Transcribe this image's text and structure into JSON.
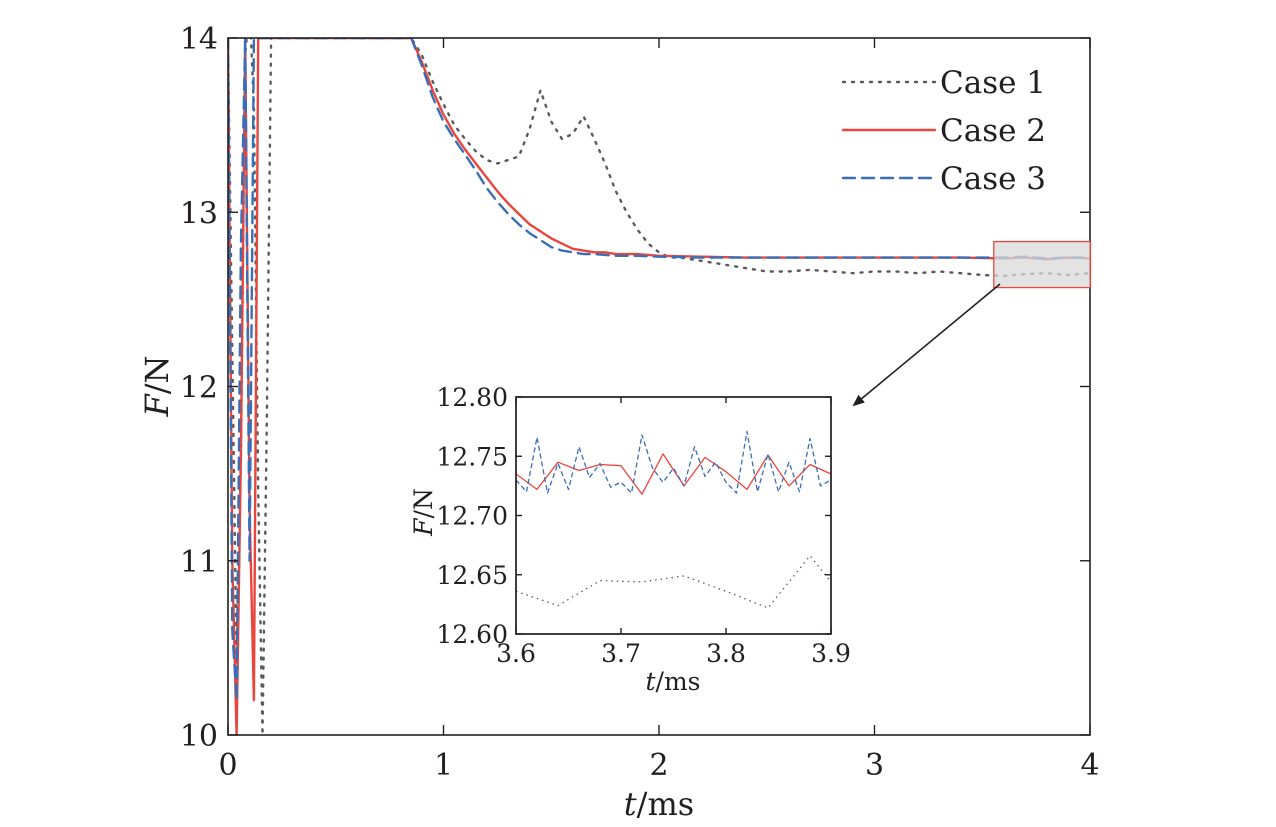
{
  "chart_data": [
    {
      "type": "line",
      "xlabel": {
        "italic": "t",
        "rest": "/ms"
      },
      "ylabel": {
        "italic": "F",
        "rest": "/N"
      },
      "xlim": [
        0,
        4
      ],
      "ylim": [
        10,
        14
      ],
      "xticks": [
        0,
        1,
        2,
        3,
        4
      ],
      "yticks": [
        10,
        11,
        12,
        13,
        14
      ],
      "grid": false,
      "legend_position": "top-right",
      "series": [
        {
          "name": "Case 1",
          "color": "#5a5a5a",
          "dash": "2,7",
          "x": [
            0.0,
            0.02,
            0.04,
            0.06,
            0.08,
            0.1,
            0.12,
            0.14,
            0.16,
            0.18,
            0.2,
            0.85,
            0.9,
            0.95,
            1.0,
            1.05,
            1.1,
            1.15,
            1.2,
            1.25,
            1.3,
            1.35,
            1.4,
            1.45,
            1.5,
            1.55,
            1.6,
            1.65,
            1.7,
            1.75,
            1.8,
            1.85,
            1.9,
            1.95,
            2.0,
            2.05,
            2.1,
            2.2,
            2.3,
            2.4,
            2.5,
            2.6,
            2.7,
            2.8,
            2.9,
            3.0,
            3.1,
            3.2,
            3.3,
            3.4,
            3.5,
            3.6,
            3.7,
            3.8,
            3.9,
            4.0
          ],
          "y": [
            14.0,
            12.2,
            10.4,
            11.6,
            13.9,
            14.2,
            13.6,
            11.4,
            10.0,
            11.8,
            14.0,
            14.0,
            13.9,
            13.75,
            13.62,
            13.5,
            13.42,
            13.35,
            13.3,
            13.28,
            13.3,
            13.32,
            13.48,
            13.7,
            13.52,
            13.42,
            13.45,
            13.55,
            13.42,
            13.28,
            13.12,
            13.0,
            12.9,
            12.82,
            12.77,
            12.74,
            12.74,
            12.72,
            12.7,
            12.68,
            12.66,
            12.66,
            12.67,
            12.66,
            12.65,
            12.66,
            12.66,
            12.65,
            12.66,
            12.65,
            12.64,
            12.635,
            12.645,
            12.65,
            12.64,
            12.65
          ]
        },
        {
          "name": "Case 2",
          "color": "#e8463d",
          "dash": "",
          "x": [
            0.0,
            0.02,
            0.04,
            0.06,
            0.08,
            0.1,
            0.12,
            0.14,
            0.85,
            0.9,
            0.95,
            1.0,
            1.05,
            1.1,
            1.15,
            1.2,
            1.25,
            1.3,
            1.35,
            1.4,
            1.45,
            1.5,
            1.55,
            1.6,
            1.65,
            1.7,
            1.75,
            1.8,
            1.9,
            2.0,
            2.2,
            2.4,
            2.6,
            2.8,
            3.0,
            3.2,
            3.4,
            3.6,
            3.7,
            3.8,
            3.9,
            4.0
          ],
          "y": [
            14.0,
            11.0,
            10.0,
            11.6,
            14.0,
            11.3,
            10.2,
            14.0,
            14.0,
            13.86,
            13.7,
            13.56,
            13.45,
            13.36,
            13.28,
            13.2,
            13.12,
            13.05,
            12.99,
            12.93,
            12.89,
            12.85,
            12.82,
            12.79,
            12.78,
            12.77,
            12.77,
            12.76,
            12.76,
            12.75,
            12.745,
            12.74,
            12.74,
            12.74,
            12.74,
            12.74,
            12.74,
            12.735,
            12.74,
            12.73,
            12.74,
            12.735
          ]
        },
        {
          "name": "Case 3",
          "color": "#3b6eb5",
          "dash": "12,7",
          "x": [
            0.0,
            0.02,
            0.04,
            0.06,
            0.08,
            0.1,
            0.12,
            0.85,
            0.9,
            0.95,
            1.0,
            1.05,
            1.1,
            1.15,
            1.2,
            1.25,
            1.3,
            1.35,
            1.4,
            1.45,
            1.5,
            1.55,
            1.6,
            1.65,
            1.7,
            1.8,
            1.9,
            2.0,
            2.2,
            2.4,
            2.6,
            2.8,
            3.0,
            3.2,
            3.4,
            3.6,
            3.7,
            3.8,
            3.9,
            4.0
          ],
          "y": [
            14.0,
            10.6,
            10.2,
            12.8,
            14.0,
            11.0,
            14.0,
            14.0,
            13.84,
            13.66,
            13.52,
            13.42,
            13.33,
            13.24,
            13.14,
            13.06,
            12.99,
            12.93,
            12.88,
            12.84,
            12.8,
            12.78,
            12.77,
            12.76,
            12.76,
            12.75,
            12.75,
            12.745,
            12.74,
            12.74,
            12.74,
            12.74,
            12.74,
            12.74,
            12.74,
            12.74,
            12.745,
            12.735,
            12.74,
            12.74
          ]
        }
      ],
      "zoom_region": {
        "x": [
          3.6,
          3.9
        ],
        "y": [
          12.6,
          12.8
        ]
      }
    },
    {
      "type": "line",
      "xlabel": {
        "italic": "t",
        "rest": "/ms"
      },
      "ylabel": {
        "italic": "F",
        "rest": "/N"
      },
      "xlim": [
        3.6,
        3.9
      ],
      "ylim": [
        12.6,
        12.8
      ],
      "xticks": [
        3.6,
        3.7,
        3.8,
        3.9
      ],
      "yticks": [
        12.6,
        12.65,
        12.7,
        12.75,
        12.8
      ],
      "xtick_labels": [
        "3.6",
        "3.7",
        "3.8",
        "3.9"
      ],
      "ytick_labels": [
        "12.60",
        "12.65",
        "12.70",
        "12.75",
        "12.80"
      ],
      "grid": false,
      "series": [
        {
          "name": "Case 1",
          "color": "#5a5a5a",
          "dash": "1.5,4",
          "x": [
            3.6,
            3.64,
            3.68,
            3.72,
            3.76,
            3.8,
            3.84,
            3.88,
            3.9
          ],
          "y": [
            12.636,
            12.624,
            12.645,
            12.644,
            12.649,
            12.636,
            12.622,
            12.666,
            12.644
          ]
        },
        {
          "name": "Case 2",
          "color": "#e8463d",
          "dash": "",
          "x": [
            3.6,
            3.62,
            3.64,
            3.66,
            3.68,
            3.7,
            3.72,
            3.74,
            3.76,
            3.78,
            3.8,
            3.82,
            3.84,
            3.86,
            3.88,
            3.9
          ],
          "y": [
            12.735,
            12.722,
            12.745,
            12.738,
            12.743,
            12.742,
            12.718,
            12.752,
            12.725,
            12.749,
            12.737,
            12.722,
            12.751,
            12.725,
            12.743,
            12.735
          ]
        },
        {
          "name": "Case 3",
          "color": "#3b6eb5",
          "dash": "5,3",
          "x": [
            3.6,
            3.61,
            3.62,
            3.63,
            3.64,
            3.65,
            3.66,
            3.67,
            3.68,
            3.69,
            3.7,
            3.71,
            3.72,
            3.73,
            3.74,
            3.75,
            3.76,
            3.77,
            3.78,
            3.79,
            3.8,
            3.81,
            3.82,
            3.83,
            3.84,
            3.85,
            3.86,
            3.87,
            3.88,
            3.89,
            3.9
          ],
          "y": [
            12.73,
            12.72,
            12.766,
            12.719,
            12.744,
            12.722,
            12.758,
            12.732,
            12.744,
            12.724,
            12.728,
            12.719,
            12.768,
            12.74,
            12.728,
            12.74,
            12.725,
            12.758,
            12.733,
            12.745,
            12.728,
            12.719,
            12.771,
            12.72,
            12.752,
            12.72,
            12.745,
            12.72,
            12.765,
            12.725,
            12.73
          ]
        }
      ]
    }
  ],
  "colors": {
    "axis": "#231f20",
    "zoom_box_fill": "#d9d9d9",
    "zoom_box_stroke": "#e8463d"
  }
}
